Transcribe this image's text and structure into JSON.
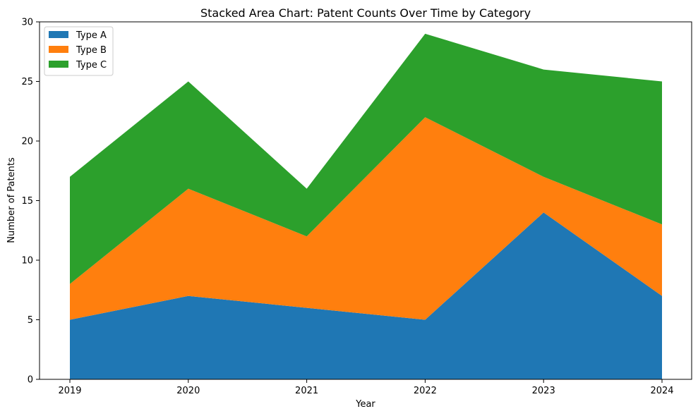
{
  "chart_data": {
    "type": "area",
    "stacked": true,
    "title": "Stacked Area Chart: Patent Counts Over Time by Category",
    "xlabel": "Year",
    "ylabel": "Number of Patents",
    "categories": [
      "2019",
      "2020",
      "2021",
      "2022",
      "2023",
      "2024"
    ],
    "series": [
      {
        "name": "Type A",
        "values": [
          5,
          7,
          6,
          5,
          14,
          7
        ],
        "color": "#1f77b4"
      },
      {
        "name": "Type B",
        "values": [
          3,
          9,
          6,
          17,
          3,
          6
        ],
        "color": "#ff7f0e"
      },
      {
        "name": "Type C",
        "values": [
          9,
          9,
          4,
          7,
          9,
          12
        ],
        "color": "#2ca02c"
      }
    ],
    "ylim": [
      0,
      30
    ],
    "yticks": [
      0,
      5,
      10,
      15,
      20,
      25,
      30
    ],
    "grid": false,
    "legend_position": "top-left"
  }
}
